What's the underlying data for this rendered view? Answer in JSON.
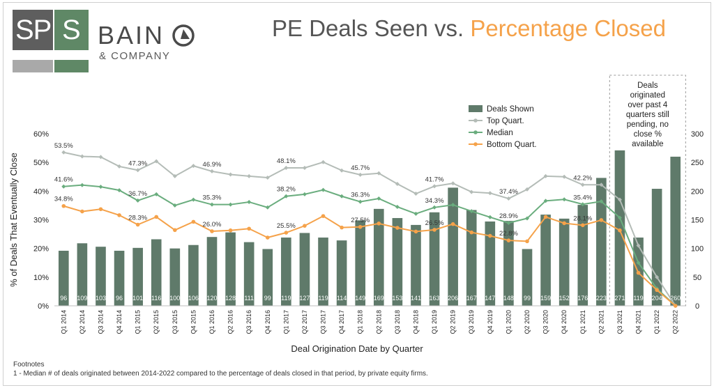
{
  "brand": {
    "logo_left": "SP",
    "logo_right": "S",
    "company": "BAIN",
    "company_sub": "& COMPANY"
  },
  "title": {
    "part1": "PE Deals Seen vs.",
    "part2": "Percentage Closed"
  },
  "footnotes": {
    "heading": "Footnotes",
    "note1": "1 - Median # of deals originated between 2014-2022 compared to the percentage of deals closed in that period, by private equity firms."
  },
  "callout": {
    "lines": [
      "Deals",
      "originated",
      "over past 4",
      "quarters still",
      "pending, no",
      "close %",
      "available"
    ]
  },
  "chart_data": {
    "type": "bar",
    "xlabel": "Deal Origination Date by Quarter",
    "ylabel": "% of Deals That Eventually Close",
    "ylim": [
      0,
      60
    ],
    "y2lim": [
      0,
      300
    ],
    "yticks": [
      "0%",
      "10%",
      "20%",
      "30%",
      "40%",
      "50%",
      "60%"
    ],
    "y2ticks": [
      "0",
      "50",
      "100",
      "150",
      "200",
      "250",
      "300"
    ],
    "legend_position": "top-center",
    "colors": {
      "bars": "#5f7a6a",
      "top": "#b4bcb7",
      "median": "#6aad7e",
      "bottom": "#f5a24a"
    },
    "categories": [
      "Q1 2014",
      "Q2 2014",
      "Q3 2014",
      "Q4 2014",
      "Q1 2015",
      "Q2 2015",
      "Q3 2015",
      "Q4 2015",
      "Q1 2016",
      "Q2 2016",
      "Q3 2016",
      "Q4 2016",
      "Q1 2017",
      "Q2 2017",
      "Q3 2017",
      "Q4 2017",
      "Q1 2018",
      "Q2 2018",
      "Q3 2018",
      "Q4 2018",
      "Q1 2019",
      "Q2 2019",
      "Q3 2019",
      "Q4 2019",
      "Q1 2020",
      "Q2 2020",
      "Q3 2020",
      "Q4 2020",
      "Q1 2021",
      "Q2 2021",
      "Q3 2021",
      "Q4 2021",
      "Q1 2022",
      "Q2 2022"
    ],
    "series": [
      {
        "name": "Deals Shown",
        "kind": "bar",
        "axis": "right",
        "values": [
          96,
          109,
          103,
          96,
          101,
          116,
          100,
          106,
          120,
          128,
          111,
          99,
          119,
          127,
          119,
          114,
          149,
          169,
          153,
          141,
          163,
          206,
          167,
          147,
          148,
          99,
          159,
          152,
          176,
          223,
          271,
          119,
          204,
          260
        ]
      },
      {
        "name": "Top Quart.",
        "kind": "line",
        "axis": "left",
        "values": [
          53.5,
          52.1,
          51.9,
          48.6,
          47.3,
          50.4,
          45.2,
          48.8,
          46.9,
          45.8,
          45.2,
          44.7,
          48.1,
          48.1,
          50.1,
          47.2,
          45.7,
          46.2,
          42.5,
          39.1,
          41.7,
          42.7,
          39.7,
          39.3,
          37.4,
          40.6,
          45.2,
          45.0,
          42.2,
          42.2,
          37.0,
          21.0,
          10.0,
          0.0
        ]
      },
      {
        "name": "Median",
        "kind": "line",
        "axis": "left",
        "values": [
          41.6,
          42.1,
          41.5,
          40.3,
          36.7,
          38.9,
          35.0,
          37.0,
          35.3,
          35.3,
          36.2,
          34.3,
          38.2,
          38.9,
          40.4,
          38.2,
          36.3,
          37.4,
          34.5,
          32.1,
          34.3,
          35.2,
          33.0,
          30.9,
          28.9,
          30.5,
          36.6,
          37.1,
          35.4,
          36.4,
          30.7,
          15.0,
          6.0,
          0.0
        ]
      },
      {
        "name": "Bottom Quart.",
        "kind": "line",
        "axis": "left",
        "values": [
          34.8,
          32.9,
          33.7,
          31.6,
          28.3,
          31.0,
          26.4,
          29.3,
          26.0,
          26.3,
          26.9,
          23.8,
          25.5,
          27.9,
          31.3,
          27.3,
          27.5,
          28.7,
          27.2,
          25.9,
          26.5,
          28.5,
          25.6,
          24.4,
          22.8,
          22.5,
          31.0,
          28.8,
          28.1,
          29.9,
          26.3,
          11.5,
          5.5,
          0.0
        ]
      }
    ],
    "data_labels": [
      {
        "series": "Top Quart.",
        "index": 0,
        "text": "53.5%"
      },
      {
        "series": "Top Quart.",
        "index": 4,
        "text": "47.3%"
      },
      {
        "series": "Top Quart.",
        "index": 8,
        "text": "46.9%"
      },
      {
        "series": "Top Quart.",
        "index": 12,
        "text": "48.1%"
      },
      {
        "series": "Top Quart.",
        "index": 16,
        "text": "45.7%"
      },
      {
        "series": "Top Quart.",
        "index": 20,
        "text": "41.7%"
      },
      {
        "series": "Top Quart.",
        "index": 24,
        "text": "37.4%"
      },
      {
        "series": "Top Quart.",
        "index": 28,
        "text": "42.2%"
      },
      {
        "series": "Median",
        "index": 0,
        "text": "41.6%"
      },
      {
        "series": "Median",
        "index": 4,
        "text": "36.7%"
      },
      {
        "series": "Median",
        "index": 8,
        "text": "35.3%"
      },
      {
        "series": "Median",
        "index": 12,
        "text": "38.2%"
      },
      {
        "series": "Median",
        "index": 16,
        "text": "36.3%"
      },
      {
        "series": "Median",
        "index": 20,
        "text": "34.3%"
      },
      {
        "series": "Median",
        "index": 24,
        "text": "28.9%"
      },
      {
        "series": "Median",
        "index": 28,
        "text": "35.4%"
      },
      {
        "series": "Bottom Quart.",
        "index": 0,
        "text": "34.8%"
      },
      {
        "series": "Bottom Quart.",
        "index": 4,
        "text": "28.3%"
      },
      {
        "series": "Bottom Quart.",
        "index": 8,
        "text": "26.0%"
      },
      {
        "series": "Bottom Quart.",
        "index": 12,
        "text": "25.5%"
      },
      {
        "series": "Bottom Quart.",
        "index": 16,
        "text": "27.5%"
      },
      {
        "series": "Bottom Quart.",
        "index": 20,
        "text": "26.5%"
      },
      {
        "series": "Bottom Quart.",
        "index": 24,
        "text": "22.8%"
      },
      {
        "series": "Bottom Quart.",
        "index": 28,
        "text": "28.1%"
      }
    ]
  }
}
